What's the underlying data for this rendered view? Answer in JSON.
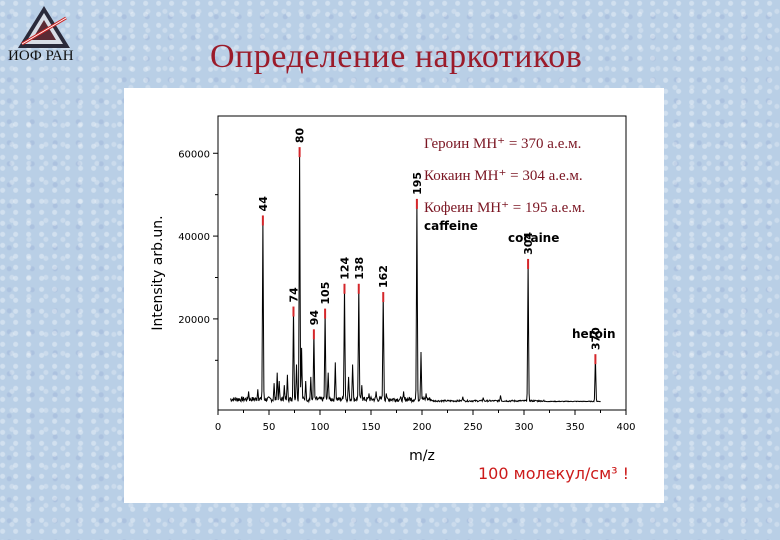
{
  "header": {
    "logo_text": "ИОФ РАН",
    "title": "Определение наркотиков"
  },
  "annotations": {
    "note": "100 молекул/см³ !"
  },
  "colors": {
    "title": "#9b1b2a",
    "marker": "#d4262a",
    "trace": "#000000"
  },
  "chart_data": {
    "type": "line",
    "title": "",
    "xlabel": "m/z",
    "ylabel": "Intensity arb.un.",
    "xlim": [
      0,
      400
    ],
    "ylim": [
      -2000,
      69000
    ],
    "x_ticks": [
      0,
      50,
      100,
      150,
      200,
      250,
      300,
      350,
      400
    ],
    "y_ticks": [
      20000,
      40000,
      60000
    ],
    "y_tick_labels": [
      "20000",
      "40000",
      "60000"
    ],
    "peaks": [
      {
        "mz": 44,
        "intensity": 44500,
        "label": "44"
      },
      {
        "mz": 74,
        "intensity": 22500,
        "label": "74"
      },
      {
        "mz": 80,
        "intensity": 61000,
        "label": "80"
      },
      {
        "mz": 94,
        "intensity": 17000,
        "label": "94"
      },
      {
        "mz": 105,
        "intensity": 22000,
        "label": "105"
      },
      {
        "mz": 124,
        "intensity": 28000,
        "label": "124"
      },
      {
        "mz": 138,
        "intensity": 28000,
        "label": "138"
      },
      {
        "mz": 162,
        "intensity": 26000,
        "label": "162"
      },
      {
        "mz": 195,
        "intensity": 48500,
        "label": "195"
      },
      {
        "mz": 304,
        "intensity": 34000,
        "label": "304"
      },
      {
        "mz": 370,
        "intensity": 11000,
        "label": "370"
      }
    ],
    "minor_peaks": [
      {
        "mz": 30,
        "intensity": 2500
      },
      {
        "mz": 39,
        "intensity": 3000
      },
      {
        "mz": 55,
        "intensity": 4500
      },
      {
        "mz": 58,
        "intensity": 7000
      },
      {
        "mz": 60,
        "intensity": 5000
      },
      {
        "mz": 65,
        "intensity": 4000
      },
      {
        "mz": 68,
        "intensity": 6500
      },
      {
        "mz": 77,
        "intensity": 9000
      },
      {
        "mz": 82,
        "intensity": 13000
      },
      {
        "mz": 86,
        "intensity": 5000
      },
      {
        "mz": 91,
        "intensity": 6000
      },
      {
        "mz": 108,
        "intensity": 7000
      },
      {
        "mz": 115,
        "intensity": 9500
      },
      {
        "mz": 128,
        "intensity": 6000
      },
      {
        "mz": 132,
        "intensity": 9000
      },
      {
        "mz": 141,
        "intensity": 4000
      },
      {
        "mz": 148,
        "intensity": 2000
      },
      {
        "mz": 155,
        "intensity": 2500
      },
      {
        "mz": 165,
        "intensity": 2000
      },
      {
        "mz": 182,
        "intensity": 2500
      },
      {
        "mz": 199,
        "intensity": 12000
      },
      {
        "mz": 204,
        "intensity": 2000
      },
      {
        "mz": 240,
        "intensity": 1200
      },
      {
        "mz": 260,
        "intensity": 1000
      },
      {
        "mz": 277,
        "intensity": 1500
      }
    ],
    "compound_labels": [
      {
        "text": "caffeine",
        "mz": 195
      },
      {
        "text": "cocaine",
        "mz": 304
      },
      {
        "text": "heroin",
        "mz": 370
      }
    ],
    "formula_lines": [
      {
        "text": "Героин MH⁺ = 370 а.е.м."
      },
      {
        "text": "Кокаин MH⁺ = 304 а.е.м."
      },
      {
        "text": "Кофеин MH⁺ = 195 а.е.м."
      }
    ]
  }
}
